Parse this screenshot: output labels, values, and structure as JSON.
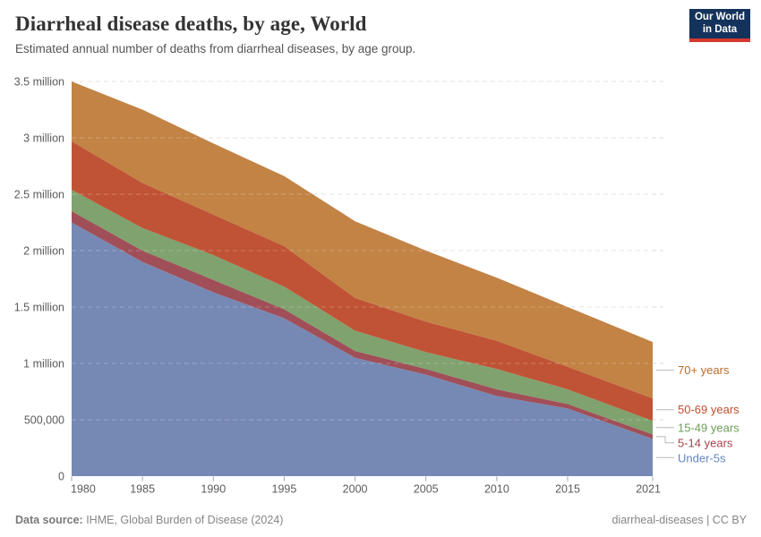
{
  "header": {
    "title": "Diarrheal disease deaths, by age, World",
    "subtitle": "Estimated annual number of deaths from diarrheal diseases, by age group.",
    "logo": {
      "line1": "Our World",
      "line2": "in Data",
      "bg": "#14335c",
      "accent": "#d7382d"
    }
  },
  "chart_data": {
    "type": "area",
    "stacked": true,
    "title": "Diarrheal disease deaths, by age, World",
    "xlabel": "",
    "ylabel": "",
    "x": [
      1980,
      1985,
      1990,
      1995,
      2000,
      2005,
      2010,
      2015,
      2021
    ],
    "xlim": [
      1980,
      2021
    ],
    "ylim": [
      0,
      3500000
    ],
    "grid": true,
    "legend_position": "right",
    "series": [
      {
        "name": "Under-5s",
        "color": "#7589b4",
        "label_color": "#6584be",
        "values": [
          2250000,
          1900000,
          1630000,
          1400000,
          1050000,
          900000,
          710000,
          600000,
          330000
        ]
      },
      {
        "name": "5-14 years",
        "color": "#a04f58",
        "label_color": "#a8434e",
        "values": [
          100000,
          100000,
          110000,
          80000,
          60000,
          50000,
          60000,
          40000,
          40000
        ]
      },
      {
        "name": "15-49 years",
        "color": "#7fa26f",
        "label_color": "#6d9c5b",
        "values": [
          190000,
          200000,
          220000,
          200000,
          180000,
          150000,
          180000,
          130000,
          120000
        ]
      },
      {
        "name": "50-69 years",
        "color": "#c05336",
        "label_color": "#c14e31",
        "values": [
          430000,
          400000,
          360000,
          360000,
          290000,
          270000,
          250000,
          200000,
          200000
        ]
      },
      {
        "name": "70+ years",
        "color": "#c28345",
        "label_color": "#bc6c2c",
        "values": [
          530000,
          650000,
          630000,
          620000,
          680000,
          630000,
          560000,
          530000,
          500000
        ]
      }
    ],
    "x_ticks": {
      "values": [
        1980,
        1985,
        1990,
        1995,
        2000,
        2005,
        2010,
        2015,
        2021
      ],
      "labels": [
        "1980",
        "1985",
        "1990",
        "1995",
        "2000",
        "2005",
        "2010",
        "2015",
        "2021"
      ]
    },
    "y_ticks": {
      "values": [
        0,
        500000,
        1000000,
        1500000,
        2000000,
        2500000,
        3000000,
        3500000
      ],
      "labels": [
        "0",
        "500,000",
        "1 million",
        "1.5 million",
        "2 million",
        "2.5 million",
        "3 million",
        "3.5 million"
      ]
    }
  },
  "footer": {
    "source_label": "Data source:",
    "source_text": " IHME, Global Burden of Disease (2024)",
    "right_text": "diarrheal-diseases | CC BY"
  }
}
